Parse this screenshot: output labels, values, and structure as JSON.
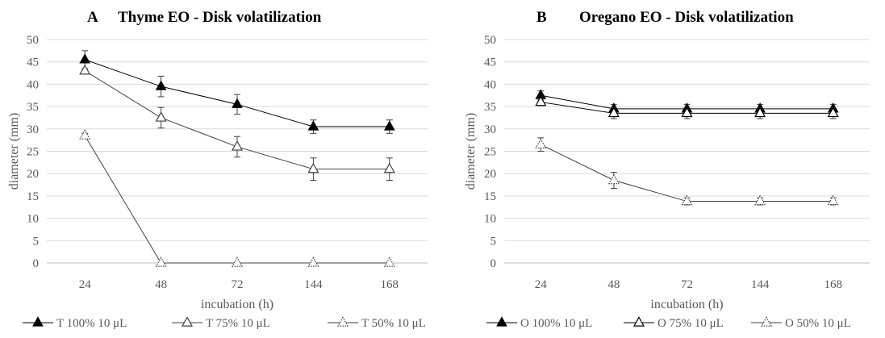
{
  "chart_data": [
    {
      "type": "line",
      "panel_letter": "A",
      "title": "Thyme EO - Disk volatilization",
      "xlabel": "incubation (h)",
      "ylabel": "diameter (mm)",
      "categories": [
        "24",
        "48",
        "72",
        "144",
        "168"
      ],
      "ylim": [
        0,
        50
      ],
      "yticks": [
        0,
        5,
        10,
        15,
        20,
        25,
        30,
        35,
        40,
        45,
        50
      ],
      "grid": true,
      "legend_position": "bottom",
      "series": [
        {
          "name": "T 100% 10 μL",
          "marker": "filled-triangle",
          "color": "#000000",
          "values": [
            45.5,
            39.5,
            35.5,
            30.5,
            30.5
          ],
          "errors": [
            2,
            2.3,
            2.2,
            1.5,
            1.5
          ]
        },
        {
          "name": "T 75% 10 μL",
          "marker": "open-triangle",
          "color": "#404040",
          "values": [
            43,
            32.5,
            26,
            21,
            21
          ],
          "errors": [
            0.5,
            2.3,
            2.3,
            2.5,
            2.5
          ]
        },
        {
          "name": "T 50% 10 μL",
          "marker": "dotted-triangle",
          "color": "#404040",
          "values": [
            28.5,
            0,
            0,
            0,
            0
          ],
          "errors": [
            0.5,
            0,
            0,
            0,
            0
          ]
        }
      ]
    },
    {
      "type": "line",
      "panel_letter": "B",
      "title": "Oregano EO - Disk volatilization",
      "xlabel": "incubation (h)",
      "ylabel": "diameter (mm)",
      "categories": [
        "24",
        "48",
        "72",
        "144",
        "168"
      ],
      "ylim": [
        0,
        50
      ],
      "yticks": [
        0,
        5,
        10,
        15,
        20,
        25,
        30,
        35,
        40,
        45,
        50
      ],
      "grid": true,
      "legend_position": "bottom",
      "series": [
        {
          "name": "O 100% 10 μL",
          "marker": "filled-triangle",
          "color": "#000000",
          "values": [
            37.5,
            34.5,
            34.5,
            34.5,
            34.5
          ],
          "errors": [
            1,
            1,
            1,
            1,
            1
          ]
        },
        {
          "name": "O 75% 10 μL",
          "marker": "open-triangle",
          "color": "#000000",
          "values": [
            36,
            33.5,
            33.5,
            33.5,
            33.5
          ],
          "errors": [
            0.8,
            1.2,
            1.2,
            1.2,
            1.2
          ]
        },
        {
          "name": "O 50% 10 μL",
          "marker": "dotted-triangle",
          "color": "#404040",
          "values": [
            26.5,
            18.5,
            13.8,
            13.8,
            13.8
          ],
          "errors": [
            1.5,
            1.8,
            0.8,
            0.8,
            0.8
          ]
        }
      ]
    }
  ]
}
